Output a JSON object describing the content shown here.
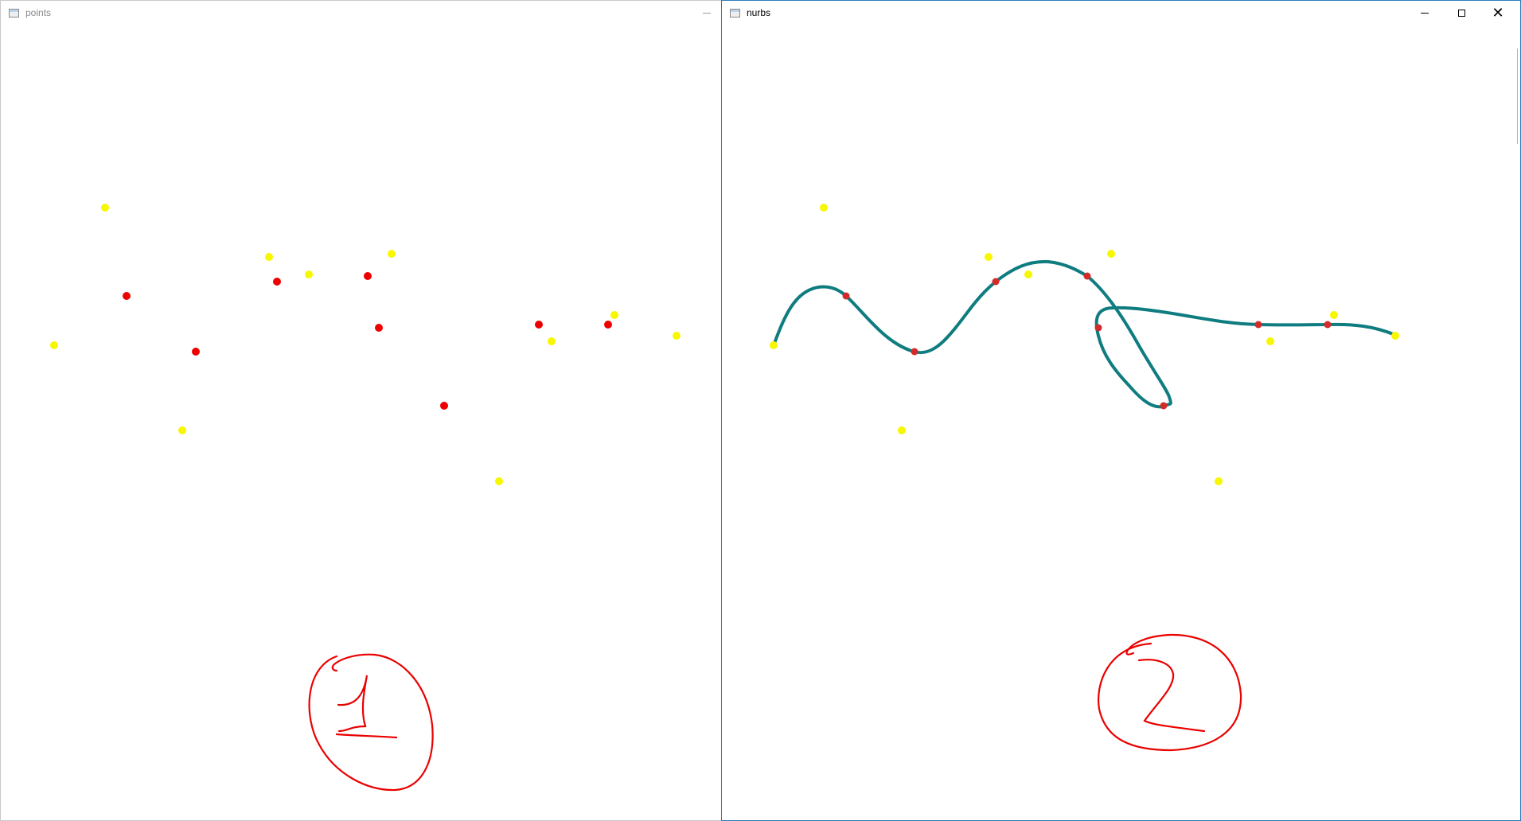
{
  "windows": {
    "points": {
      "title": "points",
      "icon": "app-window-icon",
      "controls": [
        "minimize"
      ]
    },
    "nurbs": {
      "title": "nurbs",
      "icon": "app-window-icon",
      "controls": [
        "minimize",
        "maximize",
        "close"
      ]
    }
  },
  "colors": {
    "yellow_point": "#f7f700",
    "red_point": "#ee0000",
    "curve": "#0f7c80",
    "annotation": "#ea0000"
  },
  "annotations": {
    "left_label": "1",
    "right_label": "2"
  }
}
